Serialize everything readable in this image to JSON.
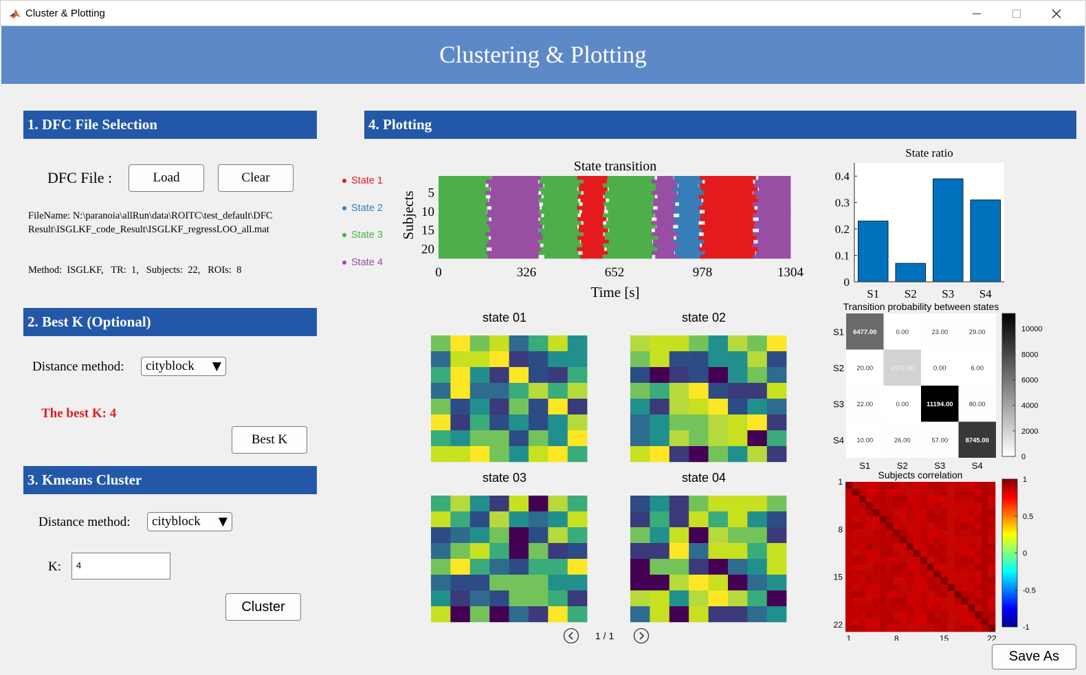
{
  "window": {
    "title": "Cluster & Plotting",
    "controls": [
      "minimize",
      "maximize",
      "close"
    ]
  },
  "banner": {
    "title": "Clustering & Plotting"
  },
  "sections": {
    "s1": "1. DFC File Selection",
    "s2": "2. Best K (Optional)",
    "s3": "3. Kmeans Cluster",
    "s4": "4. Plotting"
  },
  "file_selection": {
    "label": "DFC File :",
    "load_label": "Load",
    "clear_label": "Clear",
    "filename_line1": "FileName:  N:\\paranoia\\allRun\\data\\ROITC\\test_default\\DFC",
    "filename_line2": "Result\\ISGLKF_code_Result\\ISGLKF_regressLOO_all.mat",
    "info": "Method:  ISGLKF,   TR:  1,   Subjects:  22,   ROIs:  8"
  },
  "best_k": {
    "distance_label": "Distance method:",
    "distance_value": "cityblock",
    "result": "The best K:  4",
    "result_color": "#e01b1b",
    "button_label": "Best K"
  },
  "kmeans": {
    "distance_label": "Distance method:",
    "distance_value": "cityblock",
    "k_label": "K:",
    "k_value": "4",
    "button_label": "Cluster"
  },
  "legend": {
    "items": [
      {
        "label": "State 1",
        "color": "#e41a1c"
      },
      {
        "label": "State 2",
        "color": "#377eb8"
      },
      {
        "label": "State 3",
        "color": "#4daf4a"
      },
      {
        "label": "State 4",
        "color": "#984ea3"
      }
    ]
  },
  "state_transition": {
    "title": "State transition",
    "xlabel": "Time [s]",
    "ylabel": "Subjects",
    "xticks": [
      "0",
      "326",
      "652",
      "978",
      "1304"
    ],
    "yticks": [
      "5",
      "10",
      "15",
      "20"
    ]
  },
  "state_ratio": {
    "title": "State ratio",
    "yticks": [
      "0",
      "0.1",
      "0.2",
      "0.3",
      "0.4"
    ],
    "bar_color": "#0072bd"
  },
  "transition_prob": {
    "title": "Transition probability between states",
    "colorbar_ticks": [
      "10000",
      "8000",
      "6000",
      "4000",
      "2000",
      "0"
    ]
  },
  "subjects_corr": {
    "title": "Subjects correlation",
    "ticks": [
      "1",
      "8",
      "15",
      "22"
    ],
    "colorbar_ticks": [
      "1",
      "0.5",
      "0",
      "-0.5",
      "-1"
    ]
  },
  "state_matrices": {
    "titles": [
      "state 01",
      "state 02",
      "state 03",
      "state 04"
    ]
  },
  "pager": {
    "text": "1 / 1"
  },
  "save_label": "Save As",
  "chart_data": [
    {
      "type": "bar",
      "title": "State ratio",
      "categories": [
        "S1",
        "S2",
        "S3",
        "S4"
      ],
      "values": [
        0.23,
        0.07,
        0.39,
        0.31
      ],
      "ylim": [
        0,
        0.45
      ]
    },
    {
      "type": "heatmap",
      "title": "Transition probability between states",
      "rows": [
        "S1",
        "S2",
        "S3",
        "S4"
      ],
      "cols": [
        "S1",
        "S2",
        "S3",
        "S4"
      ],
      "values": [
        [
          6477.0,
          0.0,
          23.0,
          29.0
        ],
        [
          20.0,
          1977.0,
          0.0,
          6.0
        ],
        [
          22.0,
          0.0,
          11194.0,
          80.0
        ],
        [
          10.0,
          26.0,
          57.0,
          8745.0
        ]
      ],
      "labels": [
        [
          "6477.00",
          "0.00",
          "23.00",
          "29.00"
        ],
        [
          "20.00",
          "1977.00",
          "0.00",
          "6.00"
        ],
        [
          "22.00",
          "0.00",
          "11194.00",
          "80.00"
        ],
        [
          "10.00",
          "26.00",
          "57.00",
          "8745.00"
        ]
      ],
      "clim": [
        0,
        11194
      ]
    },
    {
      "type": "heatmap",
      "title": "State transition",
      "xlim": [
        0,
        1304
      ],
      "subjects": 22,
      "segments": [
        {
          "start": 0,
          "end": 185,
          "state": 3
        },
        {
          "start": 185,
          "end": 380,
          "state": 4
        },
        {
          "start": 380,
          "end": 525,
          "state": 3
        },
        {
          "start": 525,
          "end": 620,
          "state": 1
        },
        {
          "start": 620,
          "end": 800,
          "state": 3
        },
        {
          "start": 800,
          "end": 880,
          "state": 4
        },
        {
          "start": 880,
          "end": 975,
          "state": 2
        },
        {
          "start": 975,
          "end": 1175,
          "state": 1
        },
        {
          "start": 1175,
          "end": 1304,
          "state": 4
        }
      ]
    }
  ]
}
